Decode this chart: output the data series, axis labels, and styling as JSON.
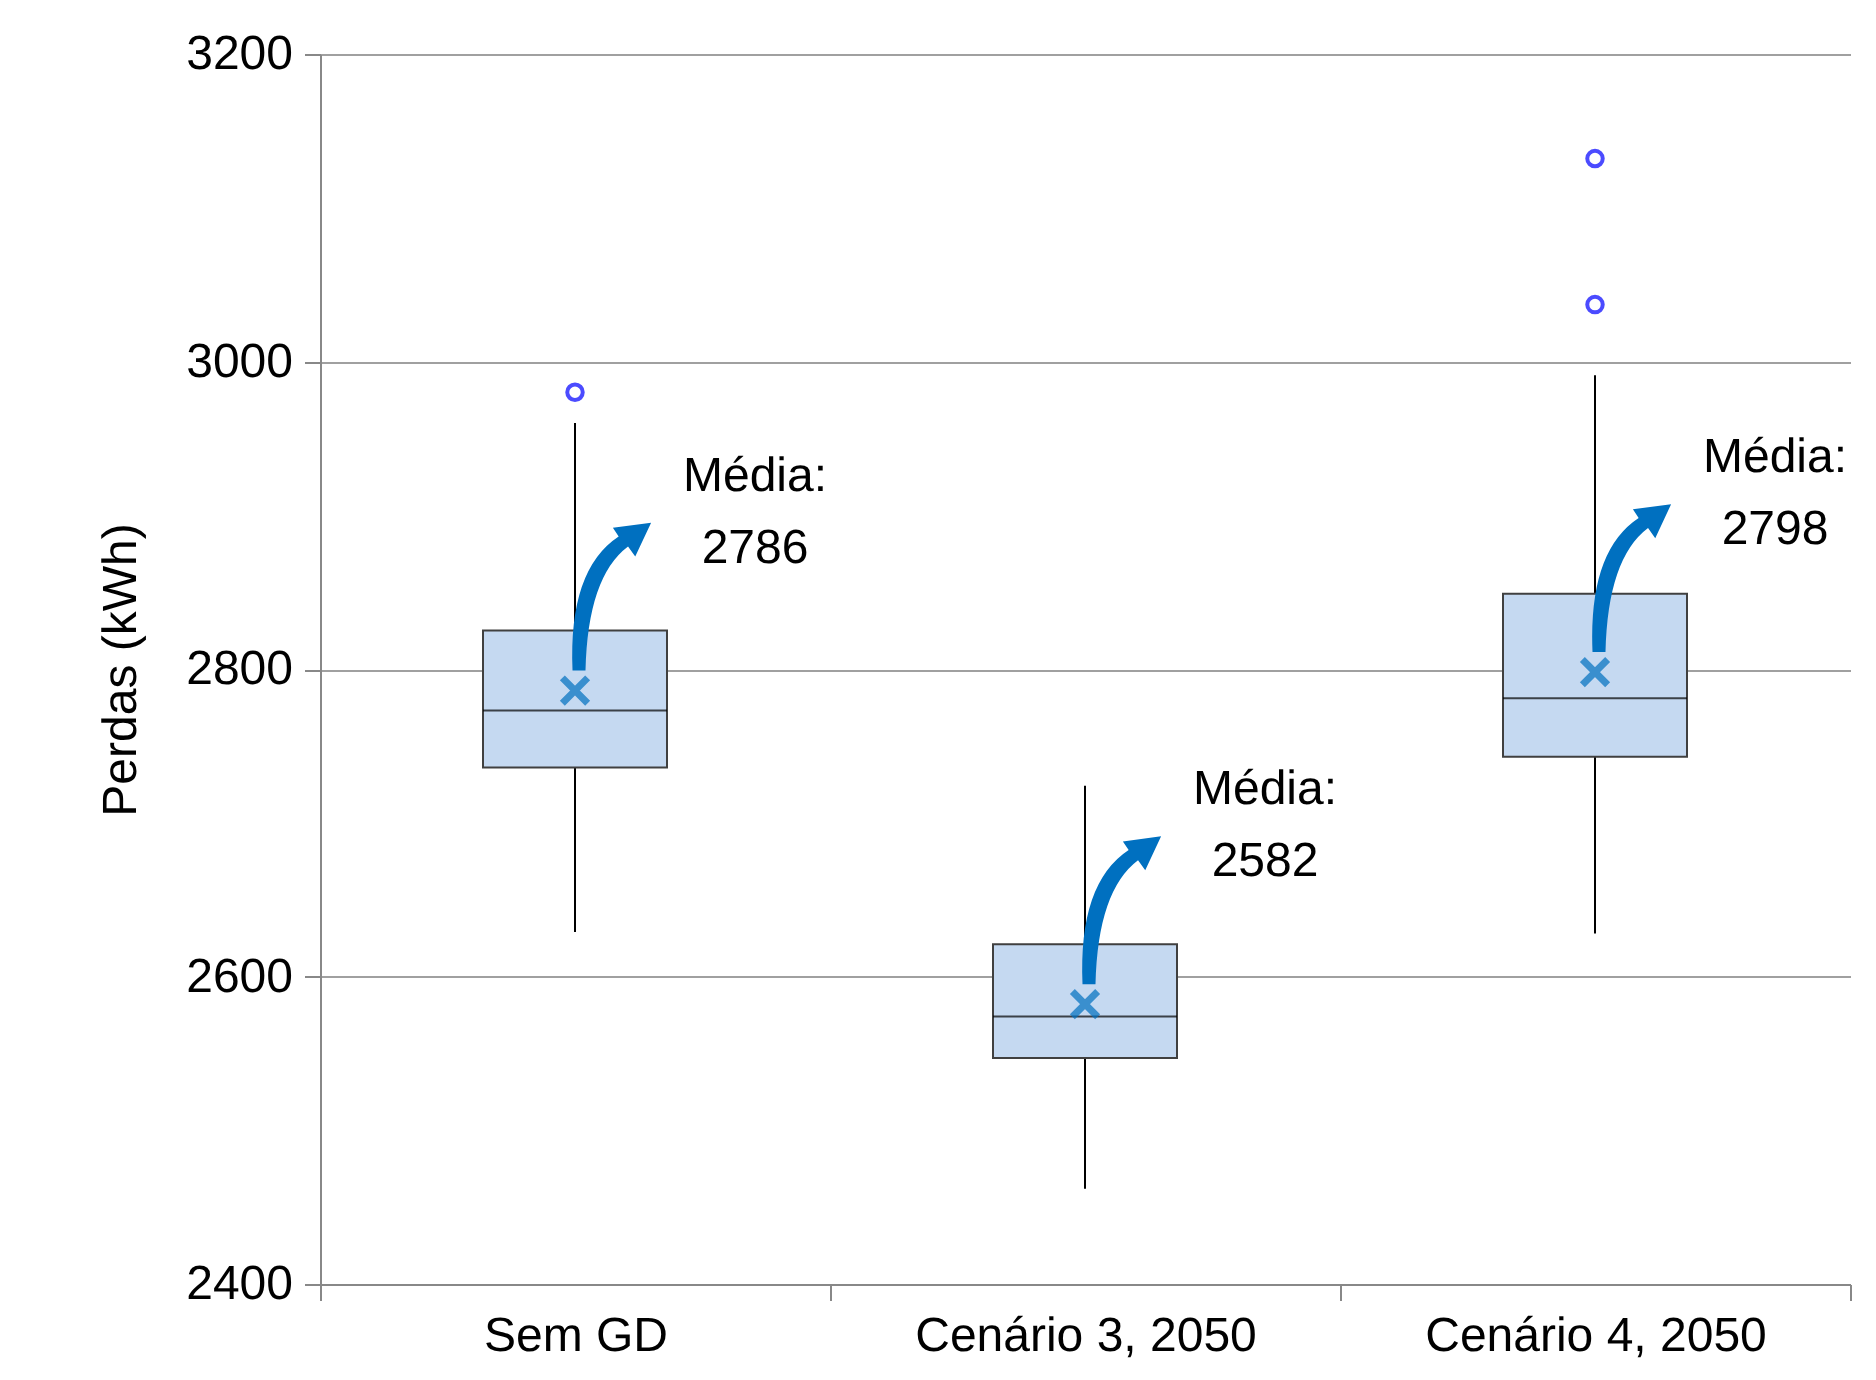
{
  "chart_data": {
    "type": "box",
    "ylabel": "Perdas (kWh)",
    "categories": [
      "Sem GD",
      "Cenário 3, 2050",
      "Cenário 4, 2050"
    ],
    "color": "#c5d9f1",
    "boxes": [
      {
        "low": 2629,
        "q1": 2736,
        "median": 2773,
        "q3": 2825,
        "high": 2960,
        "mean": 2786,
        "outliers": [
          2980
        ]
      },
      {
        "low": 2462,
        "q1": 2547,
        "median": 2574,
        "q3": 2621,
        "high": 2724,
        "mean": 2582
      },
      {
        "low": 2628,
        "q1": 2743,
        "median": 2781,
        "q3": 2849,
        "high": 2991,
        "mean": 2798,
        "outliers": [
          3132,
          3037
        ]
      }
    ],
    "ylim": [
      2400,
      3200
    ],
    "yticks": [
      2400,
      2600,
      2800,
      3000,
      3200
    ],
    "grid": "y",
    "marker": "cross",
    "annotations": [
      "Média:\n2786",
      "Média:\n2582",
      "Média:\n2798"
    ]
  }
}
